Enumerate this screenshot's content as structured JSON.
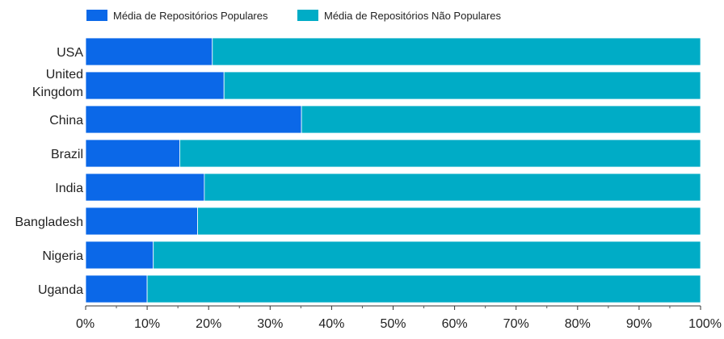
{
  "chart_data": {
    "type": "bar",
    "orientation": "horizontal",
    "stacked": "percent",
    "categories": [
      "USA",
      "United Kingdom",
      "China",
      "Brazil",
      "India",
      "Bangladesh",
      "Nigeria",
      "Uganda"
    ],
    "series": [
      {
        "name": "Média de Repositórios Populares",
        "color": "#0b68e8",
        "values": [
          20.6,
          22.5,
          35.1,
          15.3,
          19.3,
          18.2,
          11.0,
          10.0
        ]
      },
      {
        "name": "Média de Repositórios Não Populares",
        "color": "#00acc6",
        "values": [
          79.4,
          77.5,
          64.9,
          84.7,
          80.7,
          81.8,
          89.0,
          90.0
        ]
      }
    ],
    "xlim": [
      0,
      100
    ],
    "x_ticks": [
      "0%",
      "10%",
      "20%",
      "30%",
      "40%",
      "50%",
      "60%",
      "70%",
      "80%",
      "90%",
      "100%"
    ],
    "legend_position": "top-left",
    "grid": false
  }
}
